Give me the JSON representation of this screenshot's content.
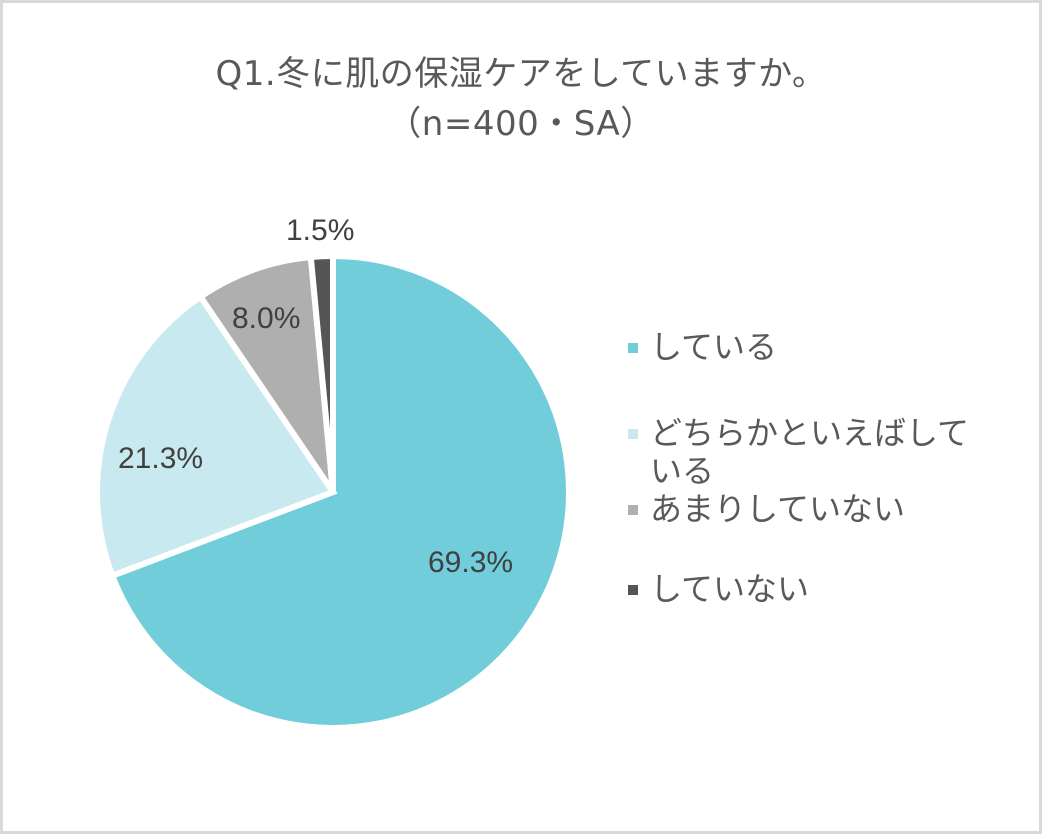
{
  "title": {
    "line1": "Q1.冬に肌の保湿ケアをしていますか。",
    "line2": "（n=400・SA）"
  },
  "chart_data": {
    "type": "pie",
    "title": "Q1.冬に肌の保湿ケアをしていますか。（n=400・SA）",
    "categories": [
      "している",
      "どちらかといえばしている",
      "あまりしていない",
      "していない"
    ],
    "values": [
      69.3,
      21.3,
      8.0,
      1.5
    ],
    "labels": [
      "69.3%",
      "21.3%",
      "8.0%",
      "1.5%"
    ],
    "colors": [
      "#72CDDB",
      "#C8E9F0",
      "#AFAFAF",
      "#555555"
    ],
    "start_angle": "12 o'clock, clockwise",
    "legend_position": "right"
  },
  "legend": {
    "items": [
      {
        "label": "している",
        "color": "#72CDDB"
      },
      {
        "label": "どちらかといえばしている",
        "color": "#C8E9F0"
      },
      {
        "label": "あまりしていない",
        "color": "#AFAFAF"
      },
      {
        "label": "していない",
        "color": "#555555"
      }
    ]
  }
}
